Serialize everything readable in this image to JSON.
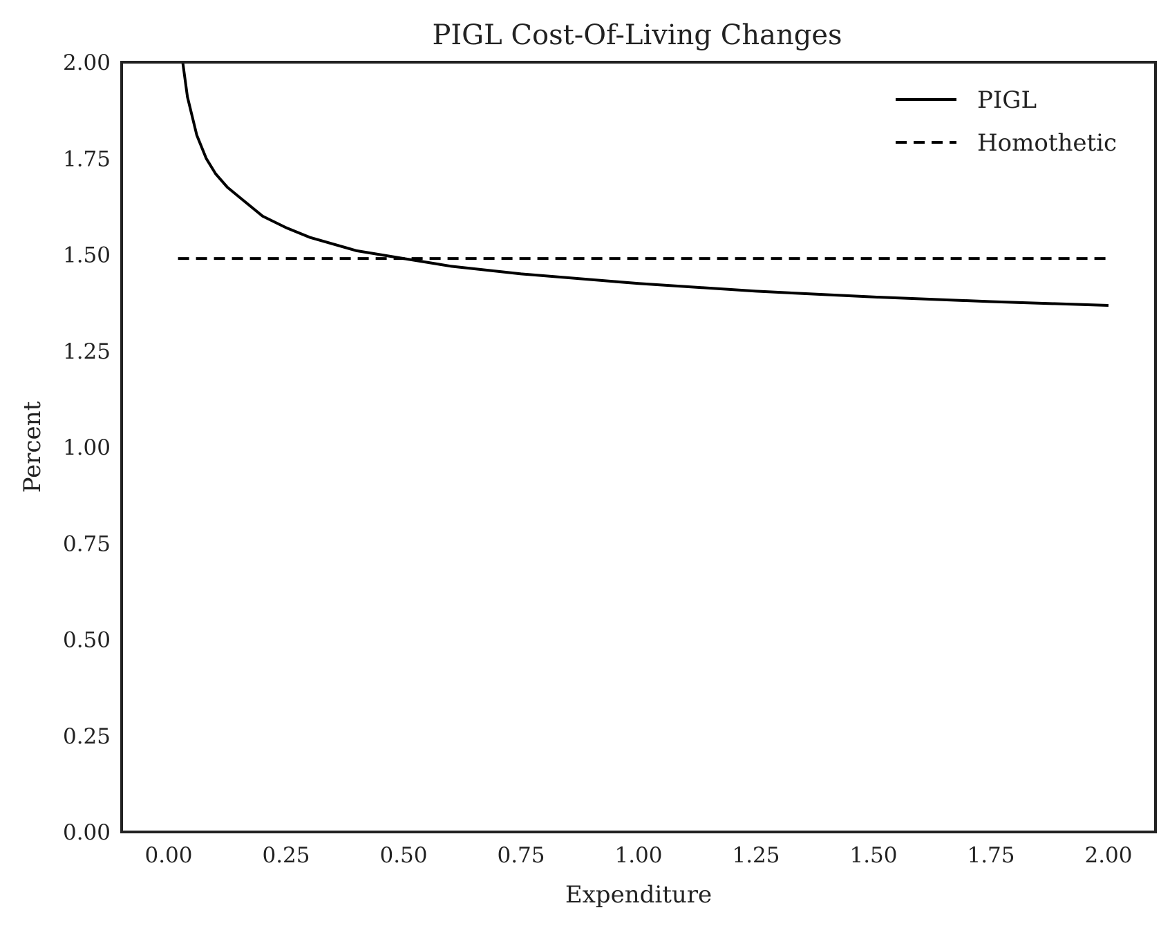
{
  "chart_data": {
    "type": "line",
    "title": "PIGL Cost-Of-Living Changes",
    "xlabel": "Expenditure",
    "ylabel": "Percent",
    "xlim": [
      -0.1,
      2.1
    ],
    "ylim": [
      0.0,
      2.0
    ],
    "x_ticks": [
      "0.00",
      "0.25",
      "0.50",
      "0.75",
      "1.00",
      "1.25",
      "1.50",
      "1.75",
      "2.00"
    ],
    "y_ticks": [
      "0.00",
      "0.25",
      "0.50",
      "0.75",
      "1.00",
      "1.25",
      "1.50",
      "1.75",
      "2.00"
    ],
    "grid": false,
    "legend_position": "top-right",
    "series": [
      {
        "name": "PIGL",
        "style": "solid",
        "color": "#000000",
        "x": [
          0.03,
          0.04,
          0.06,
          0.08,
          0.1,
          0.125,
          0.15,
          0.2,
          0.25,
          0.3,
          0.4,
          0.5,
          0.6,
          0.75,
          1.0,
          1.25,
          1.5,
          1.75,
          2.0
        ],
        "y": [
          2.0,
          1.91,
          1.81,
          1.75,
          1.71,
          1.675,
          1.65,
          1.6,
          1.57,
          1.545,
          1.51,
          1.49,
          1.47,
          1.45,
          1.425,
          1.405,
          1.39,
          1.378,
          1.368
        ]
      },
      {
        "name": "Homothetic",
        "style": "dashed",
        "color": "#000000",
        "x": [
          0.02,
          2.0
        ],
        "y": [
          1.49,
          1.49
        ]
      }
    ]
  }
}
